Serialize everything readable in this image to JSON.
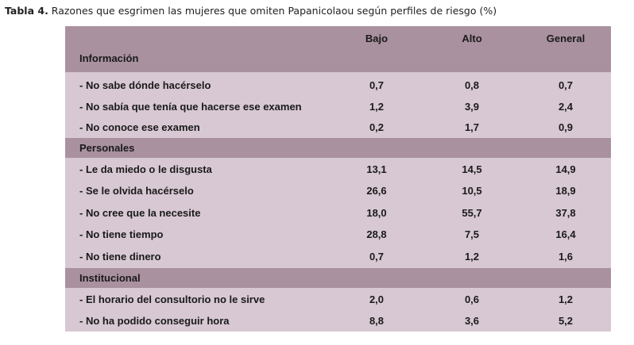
{
  "caption": {
    "prefix": "Tabla 4.",
    "text": " Razones que esgrimen las mujeres que omiten Papanicolaou según perfiles de riesgo (%)"
  },
  "table": {
    "columns": [
      "Bajo",
      "Alto",
      "General"
    ],
    "sections": [
      {
        "title": "Información",
        "rows": [
          {
            "label": "- No sabe dónde hacérselo",
            "values": [
              "0,7",
              "0,8",
              "0,7"
            ]
          },
          {
            "label": "- No sabía que tenía que  hacerse ese examen",
            "values": [
              "1,2",
              "3,9",
              "2,4"
            ]
          },
          {
            "label": "- No conoce ese examen",
            "values": [
              "0,2",
              "1,7",
              "0,9"
            ]
          }
        ]
      },
      {
        "title": "Personales",
        "rows": [
          {
            "label": "- Le da miedo o le disgusta",
            "values": [
              "13,1",
              "14,5",
              "14,9"
            ]
          },
          {
            "label": "- Se le olvida hacérselo",
            "values": [
              "26,6",
              "10,5",
              "18,9"
            ]
          },
          {
            "label": "- No cree que la necesite",
            "values": [
              "18,0",
              "55,7",
              "37,8"
            ]
          },
          {
            "label": "- No tiene tiempo",
            "values": [
              "28,8",
              "7,5",
              "16,4"
            ]
          },
          {
            "label": "- No tiene dinero",
            "values": [
              "0,7",
              "1,2",
              "1,6"
            ]
          }
        ]
      },
      {
        "title": "Institucional",
        "rows": [
          {
            "label": "- El horario del consultorio no le sirve",
            "values": [
              "2,0",
              "0,6",
              "1,2"
            ]
          },
          {
            "label": "- No ha podido conseguir hora",
            "values": [
              "8,8",
              "3,6",
              "5,2"
            ]
          }
        ]
      }
    ]
  },
  "colors": {
    "header_band": "#a9919f",
    "body_band": "#d7c8d3",
    "text": "#1a1a1a"
  }
}
